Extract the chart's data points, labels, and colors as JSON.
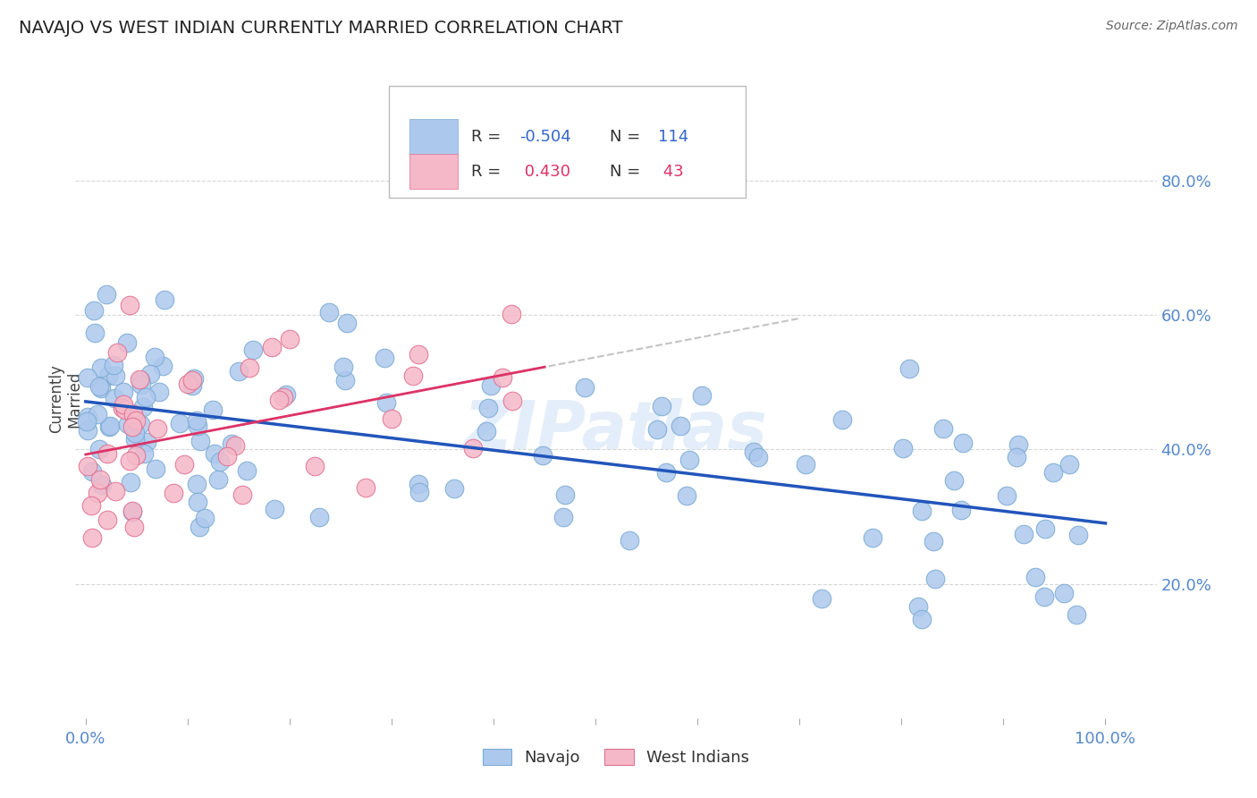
{
  "title": "NAVAJO VS WEST INDIAN CURRENTLY MARRIED CORRELATION CHART",
  "source": "Source: ZipAtlas.com",
  "ylabel": "Currently\nMarried",
  "ytick_labels": [
    "20.0%",
    "40.0%",
    "60.0%",
    "80.0%"
  ],
  "ytick_values": [
    0.2,
    0.4,
    0.6,
    0.8
  ],
  "xlim": [
    -0.01,
    1.05
  ],
  "ylim": [
    0.0,
    0.95
  ],
  "navajo_R": -0.504,
  "navajo_N": 114,
  "westindian_R": 0.43,
  "westindian_N": 43,
  "navajo_color": "#adc8ed",
  "navajo_edge_color": "#7aabd4",
  "navajo_line_color": "#2255bb",
  "westindian_color": "#f5b8c8",
  "westindian_edge_color": "#e07090",
  "westindian_line_color": "#dd3366",
  "watermark": "ZIPatlas",
  "grid_color": "#cccccc",
  "title_color": "#222222",
  "axis_tick_color": "#5588cc",
  "ylabel_color": "#444444"
}
